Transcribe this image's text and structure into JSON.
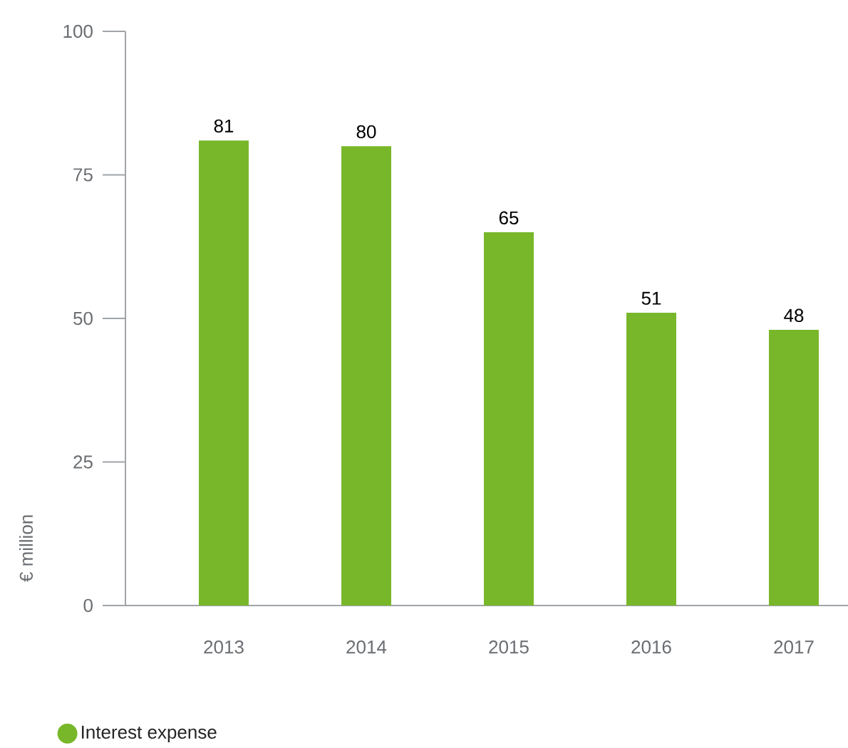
{
  "chart_data": {
    "type": "bar",
    "ylabel": "€ million",
    "categories": [
      "2013",
      "2014",
      "2015",
      "2016",
      "2017"
    ],
    "series": [
      {
        "name": "Interest expense",
        "color": "#78b72a",
        "values": [
          81,
          80,
          65,
          51,
          48
        ]
      }
    ],
    "ylim": [
      0,
      100
    ],
    "yticks": [
      0,
      25,
      50,
      75,
      100
    ],
    "data_labels": true,
    "legend": "bottom left",
    "grid": false
  }
}
